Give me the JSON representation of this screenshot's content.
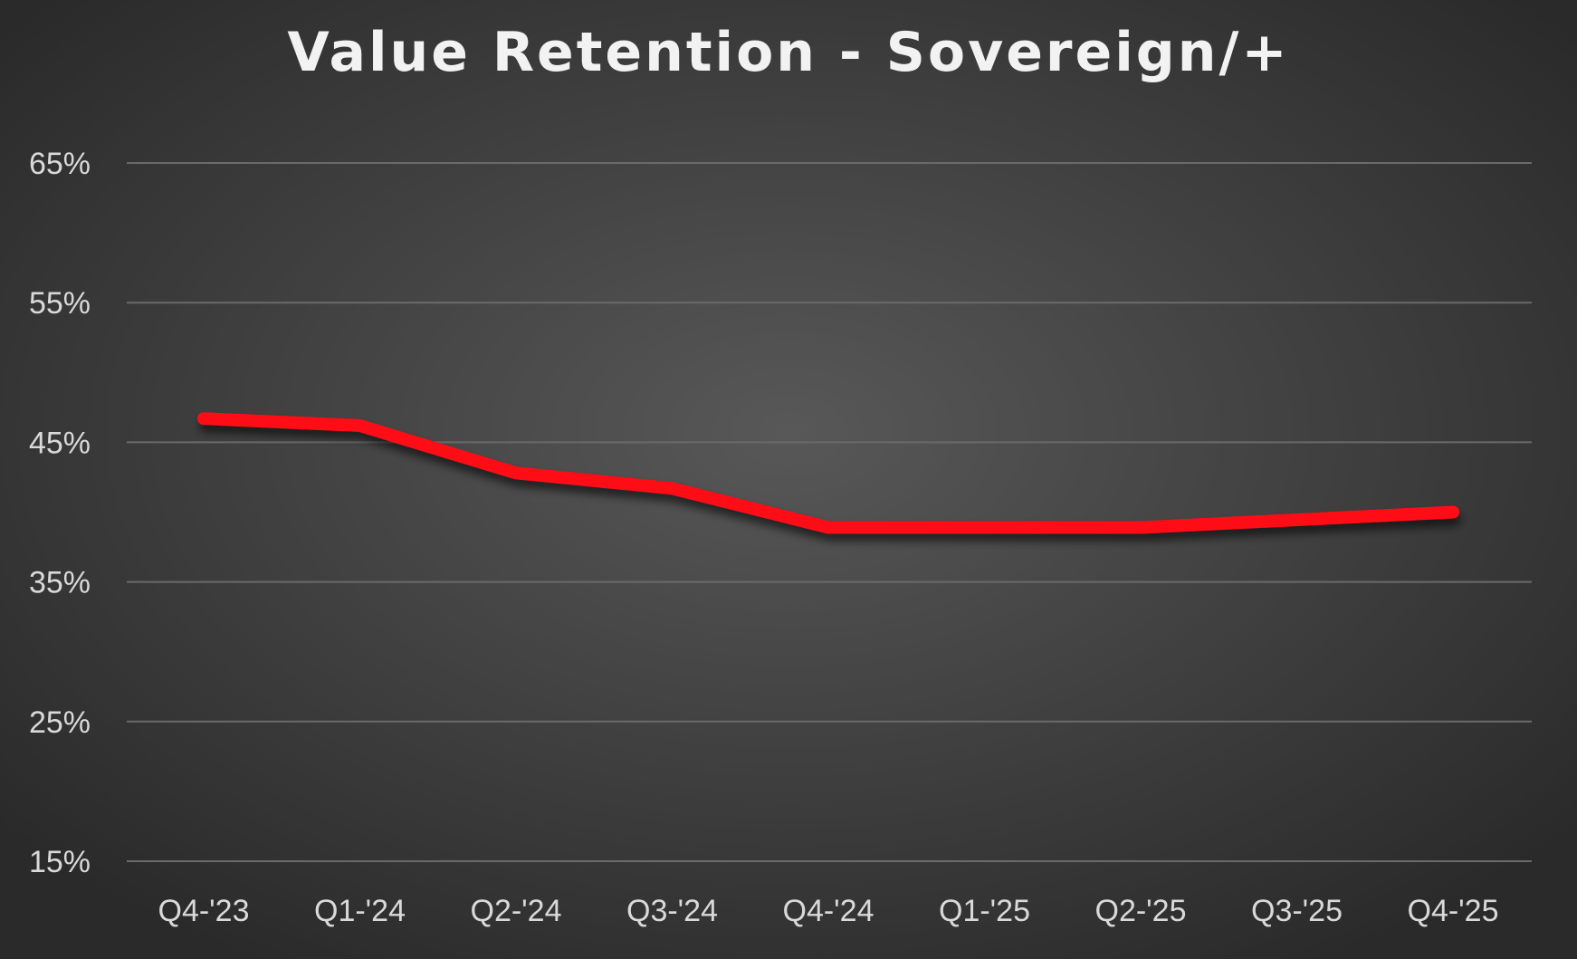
{
  "chart_data": {
    "type": "line",
    "title": "Value Retention - Sovereign/+",
    "xlabel": "",
    "ylabel": "",
    "categories": [
      "Q4-'23",
      "Q1-'24",
      "Q2-'24",
      "Q3-'24",
      "Q4-'24",
      "Q1-'25",
      "Q2-'25",
      "Q3-'25",
      "Q4-'25"
    ],
    "series": [
      {
        "values": [
          46.7,
          46.2,
          42.8,
          41.7,
          38.9,
          38.9,
          38.9,
          39.45,
          40.0
        ],
        "color": "#ff0a19"
      }
    ],
    "ylim": [
      15,
      65
    ],
    "yticks": [
      15,
      25,
      35,
      45,
      55,
      65
    ],
    "ytick_labels": [
      "15%",
      "25%",
      "35%",
      "45%",
      "55%",
      "65%"
    ],
    "grid": true,
    "legend": "none",
    "background": "#3a3a3a"
  }
}
